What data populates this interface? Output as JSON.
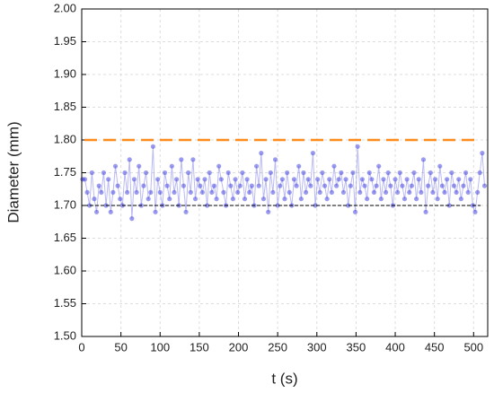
{
  "chart_data": {
    "type": "line",
    "xlabel": "t (s)",
    "ylabel": "Diameter (mm)",
    "x": [
      1,
      4,
      7,
      10,
      13,
      16,
      19,
      22,
      25,
      28,
      31,
      34,
      37,
      40,
      43,
      46,
      49,
      52,
      55,
      58,
      61,
      64,
      67,
      70,
      73,
      76,
      79,
      82,
      85,
      88,
      91,
      94,
      97,
      100,
      103,
      106,
      109,
      112,
      115,
      118,
      121,
      124,
      127,
      130,
      133,
      136,
      139,
      142,
      145,
      148,
      151,
      154,
      157,
      160,
      163,
      166,
      169,
      172,
      175,
      178,
      181,
      184,
      187,
      190,
      193,
      196,
      199,
      202,
      205,
      208,
      211,
      214,
      217,
      220,
      223,
      226,
      229,
      232,
      235,
      238,
      241,
      244,
      247,
      250,
      253,
      256,
      259,
      262,
      265,
      268,
      271,
      274,
      277,
      280,
      283,
      286,
      289,
      292,
      295,
      298,
      301,
      304,
      307,
      310,
      313,
      316,
      319,
      322,
      325,
      328,
      331,
      334,
      337,
      340,
      343,
      346,
      349,
      352,
      355,
      358,
      361,
      364,
      367,
      370,
      373,
      376,
      379,
      382,
      385,
      388,
      391,
      394,
      397,
      400,
      403,
      406,
      409,
      412,
      415,
      418,
      421,
      424,
      427,
      430,
      433,
      436,
      439,
      442,
      445,
      448,
      451,
      454,
      457,
      460,
      463,
      466,
      469,
      472,
      475,
      478,
      481,
      484,
      487,
      490,
      493,
      496,
      499,
      502,
      505,
      508,
      511,
      514
    ],
    "series": [
      {
        "color": "#3a3ae0",
        "values": [
          1.74,
          1.74,
          1.72,
          1.7,
          1.75,
          1.71,
          1.69,
          1.73,
          1.72,
          1.75,
          1.7,
          1.74,
          1.69,
          1.72,
          1.76,
          1.73,
          1.71,
          1.7,
          1.75,
          1.72,
          1.77,
          1.68,
          1.74,
          1.72,
          1.76,
          1.7,
          1.73,
          1.75,
          1.71,
          1.72,
          1.79,
          1.69,
          1.74,
          1.72,
          1.7,
          1.75,
          1.73,
          1.71,
          1.76,
          1.72,
          1.74,
          1.7,
          1.77,
          1.73,
          1.69,
          1.75,
          1.72,
          1.77,
          1.71,
          1.74,
          1.73,
          1.72,
          1.74,
          1.7,
          1.75,
          1.72,
          1.73,
          1.71,
          1.76,
          1.74,
          1.72,
          1.7,
          1.75,
          1.73,
          1.71,
          1.74,
          1.72,
          1.73,
          1.75,
          1.71,
          1.74,
          1.72,
          1.73,
          1.7,
          1.76,
          1.73,
          1.78,
          1.71,
          1.74,
          1.69,
          1.75,
          1.72,
          1.77,
          1.7,
          1.73,
          1.74,
          1.71,
          1.75,
          1.72,
          1.7,
          1.74,
          1.73,
          1.76,
          1.71,
          1.75,
          1.72,
          1.74,
          1.73,
          1.78,
          1.7,
          1.74,
          1.72,
          1.75,
          1.73,
          1.71,
          1.74,
          1.72,
          1.76,
          1.73,
          1.74,
          1.75,
          1.72,
          1.74,
          1.7,
          1.73,
          1.75,
          1.69,
          1.79,
          1.72,
          1.74,
          1.73,
          1.71,
          1.75,
          1.74,
          1.72,
          1.73,
          1.76,
          1.71,
          1.74,
          1.72,
          1.75,
          1.73,
          1.7,
          1.74,
          1.72,
          1.75,
          1.73,
          1.71,
          1.74,
          1.72,
          1.73,
          1.75,
          1.71,
          1.74,
          1.72,
          1.77,
          1.69,
          1.73,
          1.75,
          1.72,
          1.74,
          1.71,
          1.76,
          1.73,
          1.72,
          1.74,
          1.7,
          1.75,
          1.73,
          1.72,
          1.74,
          1.71,
          1.73,
          1.75,
          1.72,
          1.74,
          1.7,
          1.69,
          1.72,
          1.75,
          1.78,
          1.73
        ]
      }
    ],
    "reference_lines": [
      {
        "value": 1.8,
        "color": "#ff8c1a"
      },
      {
        "value": 1.7,
        "color": "#000000"
      }
    ],
    "xlim": [
      0,
      518
    ],
    "xticks": [
      0,
      50,
      100,
      150,
      200,
      250,
      300,
      350,
      400,
      450,
      500
    ],
    "ylim": [
      1.5,
      2.0
    ],
    "yticks": [
      {
        "value": 1.5,
        "label": "1.50"
      },
      1.55,
      {
        "value": 1.6,
        "label": "1.60"
      },
      1.65,
      {
        "value": 1.7,
        "label": "1.70"
      },
      1.75,
      {
        "value": 1.8,
        "label": "1.80"
      },
      1.85,
      {
        "value": 1.9,
        "label": "1.90"
      },
      1.95,
      {
        "value": 2.0,
        "label": "2.00"
      }
    ],
    "grid": true
  }
}
